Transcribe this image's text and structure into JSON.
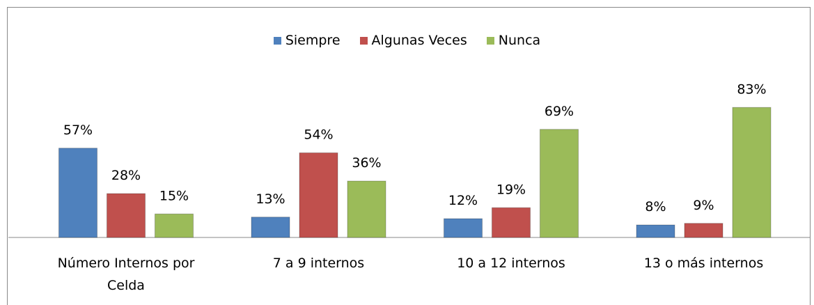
{
  "chart_data": {
    "type": "bar",
    "categories": [
      "Número Internos por Celda",
      "7 a 9 internos",
      "10 a 12 internos",
      "13 o más internos"
    ],
    "series": [
      {
        "name": "Siempre",
        "color": "#4f81bd",
        "values": [
          57,
          13,
          12,
          8
        ],
        "value_labels": [
          "57%",
          "13%",
          "12%",
          "8%"
        ]
      },
      {
        "name": "Algunas Veces",
        "color": "#c0504d",
        "values": [
          28,
          54,
          19,
          9
        ],
        "value_labels": [
          "28%",
          "54%",
          "19%",
          "9%"
        ]
      },
      {
        "name": "Nunca",
        "color": "#9bbb59",
        "values": [
          15,
          36,
          69,
          83
        ],
        "value_labels": [
          "15%",
          "36%",
          "69%",
          "83%"
        ]
      }
    ],
    "legend": "top"
  }
}
